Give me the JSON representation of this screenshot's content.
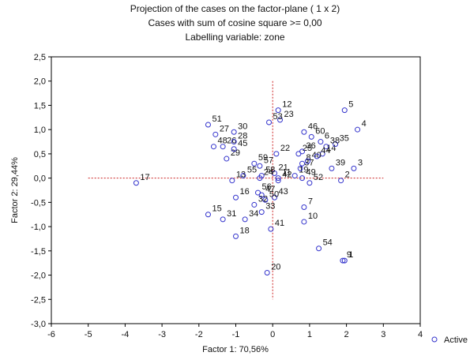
{
  "chart_data": {
    "type": "scatter",
    "title_lines": [
      "Projection of the cases on the factor-plane (  1 x   2)",
      "Cases with sum of cosine square >=  0,00",
      "Labelling variable: zone"
    ],
    "xlabel": "Factor 1: 70,56%",
    "ylabel": "Factor 2: 29,44%",
    "xlim": [
      -6,
      4
    ],
    "ylim": [
      -3,
      2.5
    ],
    "x_ticks": [
      "-6",
      "-5",
      "-4",
      "-3",
      "-2",
      "-1",
      "0",
      "1",
      "2",
      "3",
      "4"
    ],
    "y_ticks": [
      "2,5",
      "2,0",
      "1,5",
      "1,0",
      "0,5",
      "0,0",
      "-0,5",
      "-1,0",
      "-1,5",
      "-2,0",
      "-2,5",
      "-3,0"
    ],
    "legend": {
      "label": "Active",
      "position": "bottom-right"
    },
    "colors": {
      "marker": "#3333cc",
      "crosshair": "#cc2222"
    },
    "points": [
      {
        "label": "1",
        "x": 1.95,
        "y": -1.7
      },
      {
        "label": "2",
        "x": 1.85,
        "y": -0.05
      },
      {
        "label": "3",
        "x": 2.2,
        "y": 0.2
      },
      {
        "label": "4",
        "x": 2.3,
        "y": 1.0
      },
      {
        "label": "5",
        "x": 1.95,
        "y": 1.4
      },
      {
        "label": "6",
        "x": 1.3,
        "y": 0.75
      },
      {
        "label": "7",
        "x": 0.85,
        "y": -0.6
      },
      {
        "label": "8",
        "x": 0.8,
        "y": 0.3
      },
      {
        "label": "9",
        "x": 1.9,
        "y": -1.7
      },
      {
        "label": "10",
        "x": 0.85,
        "y": -0.9
      },
      {
        "label": "11",
        "x": 0.15,
        "y": 0.0
      },
      {
        "label": "12",
        "x": 0.15,
        "y": 1.4
      },
      {
        "label": "13",
        "x": -1.1,
        "y": -0.05
      },
      {
        "label": "14",
        "x": 1.35,
        "y": 0.5
      },
      {
        "label": "15",
        "x": -1.75,
        "y": -0.75
      },
      {
        "label": "16",
        "x": -1.0,
        "y": -0.4
      },
      {
        "label": "17",
        "x": -3.7,
        "y": -0.1
      },
      {
        "label": "18",
        "x": -1.0,
        "y": -1.2
      },
      {
        "label": "19",
        "x": 0.6,
        "y": 0.05
      },
      {
        "label": "20",
        "x": -0.15,
        "y": -1.95
      },
      {
        "label": "21",
        "x": 0.05,
        "y": 0.1
      },
      {
        "label": "22",
        "x": 0.1,
        "y": 0.5
      },
      {
        "label": "23",
        "x": 0.2,
        "y": 1.2
      },
      {
        "label": "24",
        "x": -0.35,
        "y": 0.0
      },
      {
        "label": "25",
        "x": 0.7,
        "y": 0.5
      },
      {
        "label": "26",
        "x": -1.35,
        "y": 0.65
      },
      {
        "label": "27",
        "x": -1.55,
        "y": 0.9
      },
      {
        "label": "28",
        "x": -1.05,
        "y": 0.75
      },
      {
        "label": "29",
        "x": -1.25,
        "y": 0.4
      },
      {
        "label": "30",
        "x": -1.05,
        "y": 0.95
      },
      {
        "label": "31",
        "x": -1.35,
        "y": -0.85
      },
      {
        "label": "32",
        "x": -0.5,
        "y": -0.55
      },
      {
        "label": "33",
        "x": -0.3,
        "y": -0.7
      },
      {
        "label": "34",
        "x": -0.75,
        "y": -0.85
      },
      {
        "label": "35",
        "x": 1.7,
        "y": 0.7
      },
      {
        "label": "36",
        "x": 0.8,
        "y": 0.55
      },
      {
        "label": "37",
        "x": 0.75,
        "y": 0.2
      },
      {
        "label": "38",
        "x": 1.45,
        "y": 0.65
      },
      {
        "label": "39",
        "x": 1.6,
        "y": 0.2
      },
      {
        "label": "40",
        "x": 0.95,
        "y": 0.35
      },
      {
        "label": "41",
        "x": -0.05,
        "y": -1.05
      },
      {
        "label": "42",
        "x": 0.15,
        "y": -0.05
      },
      {
        "label": "43",
        "x": 0.05,
        "y": -0.4
      },
      {
        "label": "44",
        "x": 1.2,
        "y": 0.45
      },
      {
        "label": "45",
        "x": -1.05,
        "y": 0.6
      },
      {
        "label": "46",
        "x": 0.85,
        "y": 0.95
      },
      {
        "label": "47",
        "x": -0.3,
        "y": -0.35
      },
      {
        "label": "48",
        "x": -1.6,
        "y": 0.65
      },
      {
        "label": "49",
        "x": 0.8,
        "y": 0.0
      },
      {
        "label": "50",
        "x": -0.2,
        "y": -0.45
      },
      {
        "label": "51",
        "x": -1.75,
        "y": 1.1
      },
      {
        "label": "52",
        "x": 1.0,
        "y": -0.1
      },
      {
        "label": "53",
        "x": -0.1,
        "y": 1.15
      },
      {
        "label": "54",
        "x": 1.25,
        "y": -1.45
      },
      {
        "label": "55",
        "x": -0.8,
        "y": 0.05
      },
      {
        "label": "56",
        "x": -0.4,
        "y": -0.3
      },
      {
        "label": "57",
        "x": -0.35,
        "y": 0.25
      },
      {
        "label": "58",
        "x": -0.3,
        "y": 0.05
      },
      {
        "label": "59",
        "x": -0.5,
        "y": 0.3
      },
      {
        "label": "60",
        "x": 1.05,
        "y": 0.85
      }
    ]
  }
}
